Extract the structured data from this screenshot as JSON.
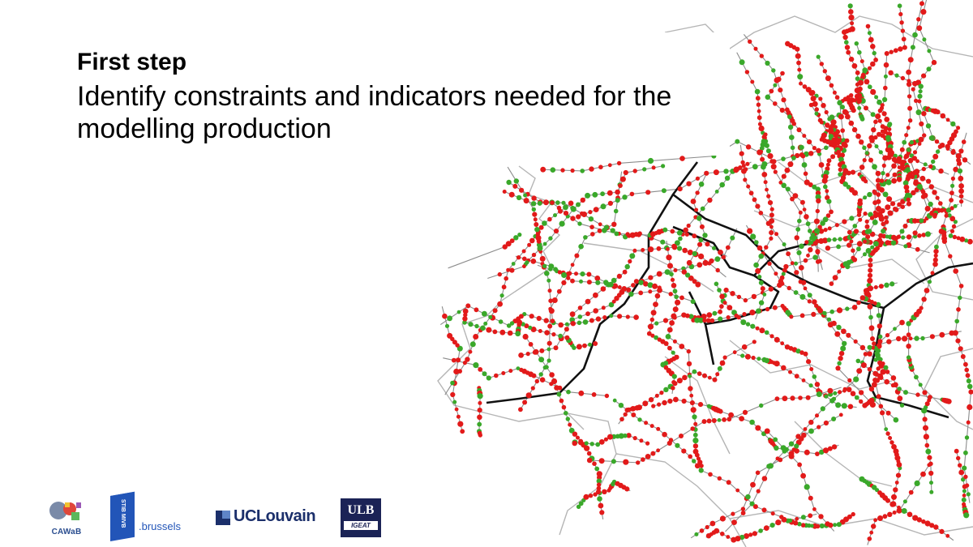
{
  "slide": {
    "title": "First step",
    "subtitle": "Identify constraints and indicators needed for the modelling production"
  },
  "colors": {
    "stop_red": "#e21a1a",
    "stop_green": "#3aa82a",
    "metro_line": "#111111",
    "bus_line": "#8c8c8c",
    "district_border": "#b0b0b0"
  },
  "logos": {
    "cawab": "CAWaB",
    "stib": "STIB MIVB",
    "stib_brussels": ".brussels",
    "uclouvain": "UCLouvain",
    "ulb": "ULB",
    "ulb_sub": "IGEAT"
  }
}
